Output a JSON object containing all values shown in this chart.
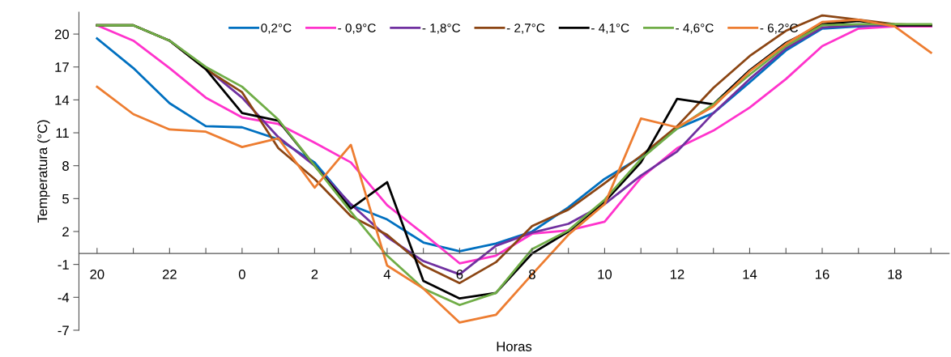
{
  "chart_data": {
    "type": "line",
    "xlabel": "Horas",
    "ylabel": "Temperatura (°C)",
    "categories": [
      "20",
      null,
      "22",
      null,
      "0",
      null,
      "2",
      null,
      "4",
      null,
      "6",
      null,
      "8",
      null,
      "10",
      null,
      "12",
      null,
      "14",
      null,
      "16",
      null,
      "18",
      null
    ],
    "series": [
      {
        "name": "0,2°C",
        "color": "#0070c0",
        "values": [
          19.6,
          16.9,
          13.7,
          11.6,
          11.5,
          10.4,
          8.3,
          4.4,
          3.1,
          1.0,
          0.2,
          0.9,
          2.0,
          4.2,
          6.8,
          8.8,
          11.4,
          12.8,
          15.6,
          18.5,
          20.5,
          20.7,
          20.7,
          20.7
        ]
      },
      {
        "name": "- 0,9°C",
        "color": "#ff33cc",
        "values": [
          20.8,
          19.4,
          16.9,
          14.2,
          12.4,
          11.8,
          10.1,
          8.3,
          4.4,
          1.8,
          -0.9,
          -0.2,
          1.8,
          2.1,
          2.9,
          6.9,
          9.6,
          11.2,
          13.3,
          15.9,
          18.9,
          20.5,
          20.7,
          20.7
        ]
      },
      {
        "name": "- 1,8°C",
        "color": "#7030a0",
        "values": [
          null,
          null,
          19.4,
          16.9,
          14.2,
          10.6,
          8.0,
          4.5,
          1.5,
          -0.7,
          -1.9,
          0.7,
          1.9,
          2.7,
          4.5,
          7.1,
          9.3,
          12.8,
          15.9,
          18.7,
          20.6,
          20.8,
          20.8,
          20.8
        ]
      },
      {
        "name": "- 2,7°C",
        "color": "#8b4513",
        "values": [
          20.8,
          20.8,
          19.4,
          16.8,
          14.7,
          9.6,
          6.8,
          3.4,
          1.7,
          -1.1,
          -2.7,
          -0.8,
          2.5,
          4.0,
          6.4,
          8.9,
          11.6,
          15.1,
          18.0,
          20.3,
          21.7,
          21.3,
          20.9,
          20.8
        ]
      },
      {
        "name": "- 4,1°C",
        "color": "#000000",
        "values": [
          20.8,
          20.8,
          19.4,
          16.8,
          12.8,
          12.1,
          8.0,
          4.1,
          6.5,
          -2.5,
          -4.1,
          -3.6,
          0.0,
          2.0,
          4.7,
          8.3,
          14.1,
          13.6,
          16.7,
          19.2,
          20.9,
          21.2,
          20.8,
          20.8
        ]
      },
      {
        "name": "- 4,6°C",
        "color": "#70ad47",
        "values": [
          20.8,
          20.8,
          19.4,
          17.0,
          15.2,
          12.2,
          8.0,
          3.8,
          -0.2,
          -3.2,
          -4.7,
          -3.6,
          0.4,
          2.1,
          4.9,
          8.6,
          11.4,
          13.6,
          16.3,
          18.9,
          20.8,
          20.9,
          20.9,
          20.9
        ]
      },
      {
        "name": "- 6,2°C",
        "color": "#ed7d31",
        "values": [
          15.2,
          12.7,
          11.3,
          11.1,
          9.7,
          10.5,
          6.0,
          9.9,
          -1.1,
          -3.2,
          -6.3,
          -5.6,
          -1.9,
          1.7,
          4.5,
          12.3,
          11.5,
          13.4,
          16.6,
          19.1,
          21.1,
          21.3,
          20.7,
          18.3
        ]
      }
    ],
    "ylim": [
      -7,
      22
    ],
    "yticks": [
      -7,
      -4,
      -1,
      2,
      5,
      8,
      11,
      14,
      17,
      20
    ],
    "grid": false,
    "legend": "top",
    "marker": "none",
    "line_style": "solid"
  }
}
